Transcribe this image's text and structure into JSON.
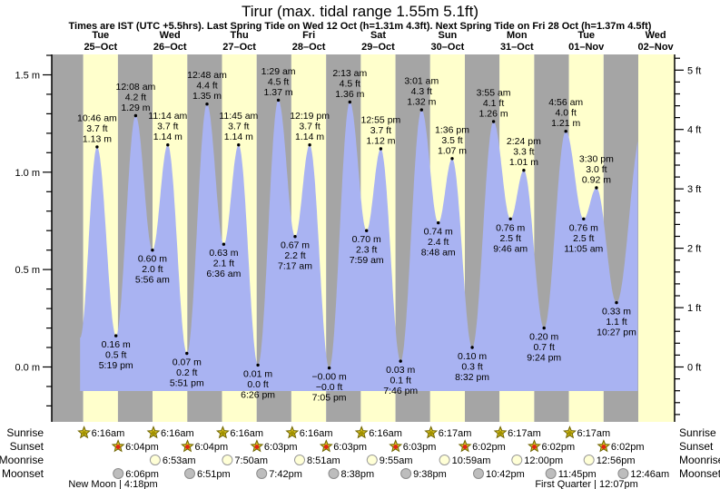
{
  "header": {
    "title": "Tirur (max. tidal range 1.55m 5.1ft)",
    "subtitle": "Times are IST (UTC +5.5hrs). Last Spring Tide on Wed 12 Oct (h=1.31m 4.3ft). Next Spring Tide on Fri 28 Oct (h=1.37m 4.5ft)"
  },
  "colors": {
    "night_band": "#a5a5a5",
    "day_band": "#ffffcc",
    "water": "#a9b3f2",
    "day_label": "#e62222",
    "text": "#000000",
    "star_fill": "#d9c226",
    "star_stroke": "#6e6400",
    "sunrise_center": "#a29200",
    "sunset_center": "#e02415",
    "moonrise_fill": "#ffffd6",
    "moonrise_stroke": "#999999",
    "moonset_fill": "#bdbdbd",
    "moonset_stroke": "#8c8c8c"
  },
  "chart_data": {
    "type": "area",
    "title": "Tirur (max. tidal range 1.55m 5.1ft)",
    "x_unit": "hours since Tue 25-Oct 00:00 IST",
    "ylabel_left": "m",
    "ylabel_right": "ft",
    "ylim_m": [
      -0.28,
      1.61
    ],
    "yticks_m": [
      "0.0 m",
      "0.5 m",
      "1.0 m",
      "1.5 m"
    ],
    "yticks_ft": [
      "0 ft",
      "1 ft",
      "2 ft",
      "3 ft",
      "4 ft",
      "5 ft"
    ],
    "grid": false,
    "days": [
      {
        "dow": "Tue",
        "date": "25–Oct"
      },
      {
        "dow": "Wed",
        "date": "26–Oct"
      },
      {
        "dow": "Thu",
        "date": "27–Oct"
      },
      {
        "dow": "Fri",
        "date": "28–Oct"
      },
      {
        "dow": "Sat",
        "date": "29–Oct"
      },
      {
        "dow": "Sun",
        "date": "30–Oct"
      },
      {
        "dow": "Mon",
        "date": "31–Oct"
      },
      {
        "dow": "Tue",
        "date": "01–Nov"
      },
      {
        "dow": "Wed",
        "date": "02–Nov"
      }
    ],
    "extremes": [
      {
        "kind": "high",
        "t": 10.767,
        "m": 1.13,
        "time": "10:46 am",
        "ft_label": "3.7 ft",
        "m_label": "1.13 m"
      },
      {
        "kind": "low",
        "t": 17.317,
        "m": 0.16,
        "time": "5:19 pm",
        "ft_label": "0.5 ft",
        "m_label": "0.16 m"
      },
      {
        "kind": "high",
        "t": 24.133,
        "m": 1.29,
        "time": "12:08 am",
        "ft_label": "4.2 ft",
        "m_label": "1.29 m"
      },
      {
        "kind": "low",
        "t": 29.933,
        "m": 0.6,
        "time": "5:56 am",
        "ft_label": "2.0 ft",
        "m_label": "0.60 m"
      },
      {
        "kind": "high",
        "t": 35.233,
        "m": 1.14,
        "time": "11:14 am",
        "ft_label": "3.7 ft",
        "m_label": "1.14 m"
      },
      {
        "kind": "low",
        "t": 41.85,
        "m": 0.07,
        "time": "5:51 pm",
        "ft_label": "0.2 ft",
        "m_label": "0.07 m"
      },
      {
        "kind": "high",
        "t": 48.8,
        "m": 1.35,
        "time": "12:48 am",
        "ft_label": "4.4 ft",
        "m_label": "1.35 m"
      },
      {
        "kind": "low",
        "t": 54.6,
        "m": 0.63,
        "time": "6:36 am",
        "ft_label": "2.1 ft",
        "m_label": "0.63 m"
      },
      {
        "kind": "high",
        "t": 59.75,
        "m": 1.14,
        "time": "11:45 am",
        "ft_label": "3.7 ft",
        "m_label": "1.14 m"
      },
      {
        "kind": "low",
        "t": 66.433,
        "m": 0.01,
        "time": "6:26 pm",
        "ft_label": "0.0 ft",
        "m_label": "0.01 m"
      },
      {
        "kind": "high",
        "t": 73.483,
        "m": 1.37,
        "time": "1:29 am",
        "ft_label": "4.5 ft",
        "m_label": "1.37 m"
      },
      {
        "kind": "low",
        "t": 79.283,
        "m": 0.67,
        "time": "7:17 am",
        "ft_label": "2.2 ft",
        "m_label": "0.67 m"
      },
      {
        "kind": "high",
        "t": 84.317,
        "m": 1.14,
        "time": "12:19 pm",
        "ft_label": "3.7 ft",
        "m_label": "1.14 m"
      },
      {
        "kind": "low",
        "t": 91.083,
        "m": -0.005,
        "time": "7:05 pm",
        "ft_label": "−0.0 ft",
        "m_label": "−0.00 m"
      },
      {
        "kind": "high",
        "t": 98.217,
        "m": 1.36,
        "time": "2:13 am",
        "ft_label": "4.5 ft",
        "m_label": "1.36 m"
      },
      {
        "kind": "low",
        "t": 103.983,
        "m": 0.7,
        "time": "7:59 am",
        "ft_label": "2.3 ft",
        "m_label": "0.70 m"
      },
      {
        "kind": "high",
        "t": 108.917,
        "m": 1.12,
        "time": "12:55 pm",
        "ft_label": "3.7 ft",
        "m_label": "1.12 m"
      },
      {
        "kind": "low",
        "t": 115.767,
        "m": 0.03,
        "time": "7:46 pm",
        "ft_label": "0.1 ft",
        "m_label": "0.03 m"
      },
      {
        "kind": "high",
        "t": 123.017,
        "m": 1.32,
        "time": "3:01 am",
        "ft_label": "4.3 ft",
        "m_label": "1.32 m"
      },
      {
        "kind": "low",
        "t": 128.8,
        "m": 0.74,
        "time": "8:48 am",
        "ft_label": "2.4 ft",
        "m_label": "0.74 m"
      },
      {
        "kind": "high",
        "t": 133.6,
        "m": 1.07,
        "time": "1:36 pm",
        "ft_label": "3.5 ft",
        "m_label": "1.07 m"
      },
      {
        "kind": "low",
        "t": 140.533,
        "m": 0.1,
        "time": "8:32 pm",
        "ft_label": "0.3 ft",
        "m_label": "0.10 m"
      },
      {
        "kind": "high",
        "t": 147.917,
        "m": 1.26,
        "time": "3:55 am",
        "ft_label": "4.1 ft",
        "m_label": "1.26 m"
      },
      {
        "kind": "low",
        "t": 153.767,
        "m": 0.76,
        "time": "9:46 am",
        "ft_label": "2.5 ft",
        "m_label": "0.76 m"
      },
      {
        "kind": "high",
        "t": 158.4,
        "m": 1.01,
        "time": "2:24 pm",
        "ft_label": "3.3 ft",
        "m_label": "1.01 m"
      },
      {
        "kind": "low",
        "t": 165.4,
        "m": 0.2,
        "time": "9:24 pm",
        "ft_label": "0.7 ft",
        "m_label": "0.20 m"
      },
      {
        "kind": "high",
        "t": 172.933,
        "m": 1.21,
        "time": "4:56 am",
        "ft_label": "4.0 ft",
        "m_label": "1.21 m"
      },
      {
        "kind": "low",
        "t": 179.083,
        "m": 0.76,
        "time": "11:05 am",
        "ft_label": "2.5 ft",
        "m_label": "0.76 m"
      },
      {
        "kind": "high",
        "t": 183.5,
        "m": 0.92,
        "time": "3:30 pm",
        "ft_label": "3.0 ft",
        "m_label": "0.92 m"
      },
      {
        "kind": "low",
        "t": 190.45,
        "m": 0.33,
        "time": "10:27 pm",
        "ft_label": "1.1 ft",
        "m_label": "0.33 m"
      }
    ],
    "curve_endpoints": {
      "start": {
        "t": 4.9,
        "m": 0.15
      },
      "end": {
        "t": 199.3,
        "m": 1.22
      }
    },
    "curve_clip": {
      "t_min": 4.9,
      "t_max": 197.8
    }
  },
  "almanac": {
    "row_labels": [
      "Sunrise",
      "Sunset",
      "Moonrise",
      "Moonset"
    ],
    "sunrise": [
      {
        "time": "6:16am",
        "t": 6.27
      },
      {
        "time": "6:16am",
        "t": 30.27
      },
      {
        "time": "6:16am",
        "t": 54.27
      },
      {
        "time": "6:16am",
        "t": 78.27
      },
      {
        "time": "6:16am",
        "t": 102.27
      },
      {
        "time": "6:17am",
        "t": 126.28
      },
      {
        "time": "6:17am",
        "t": 150.28
      },
      {
        "time": "6:17am",
        "t": 174.28
      }
    ],
    "sunset": [
      {
        "time": "6:04pm",
        "t": 18.07
      },
      {
        "time": "6:04pm",
        "t": 42.07
      },
      {
        "time": "6:03pm",
        "t": 66.05
      },
      {
        "time": "6:03pm",
        "t": 90.05
      },
      {
        "time": "6:03pm",
        "t": 114.05
      },
      {
        "time": "6:02pm",
        "t": 138.03
      },
      {
        "time": "6:02pm",
        "t": 162.03
      },
      {
        "time": "6:02pm",
        "t": 186.03
      }
    ],
    "moonrise": [
      {
        "time": "6:53am",
        "t": 30.88
      },
      {
        "time": "7:50am",
        "t": 55.83
      },
      {
        "time": "8:51am",
        "t": 80.85
      },
      {
        "time": "9:55am",
        "t": 105.92
      },
      {
        "time": "10:59am",
        "t": 130.98
      },
      {
        "time": "12:00pm",
        "t": 156.0
      },
      {
        "time": "12:56pm",
        "t": 180.93
      }
    ],
    "moonset": [
      {
        "time": "6:06pm",
        "t": 18.1
      },
      {
        "time": "6:51pm",
        "t": 42.85
      },
      {
        "time": "7:42pm",
        "t": 67.7
      },
      {
        "time": "8:38pm",
        "t": 92.63
      },
      {
        "time": "9:38pm",
        "t": 117.63
      },
      {
        "time": "10:42pm",
        "t": 142.7
      },
      {
        "time": "11:45pm",
        "t": 167.75
      },
      {
        "time": "12:46am",
        "t": 192.77
      }
    ],
    "phase_notes": [
      {
        "label": "New Moon",
        "time": "4:18pm",
        "t": 16.3
      },
      {
        "label": "First Quarter",
        "time": "12:07pm",
        "t": 180.12
      }
    ]
  }
}
